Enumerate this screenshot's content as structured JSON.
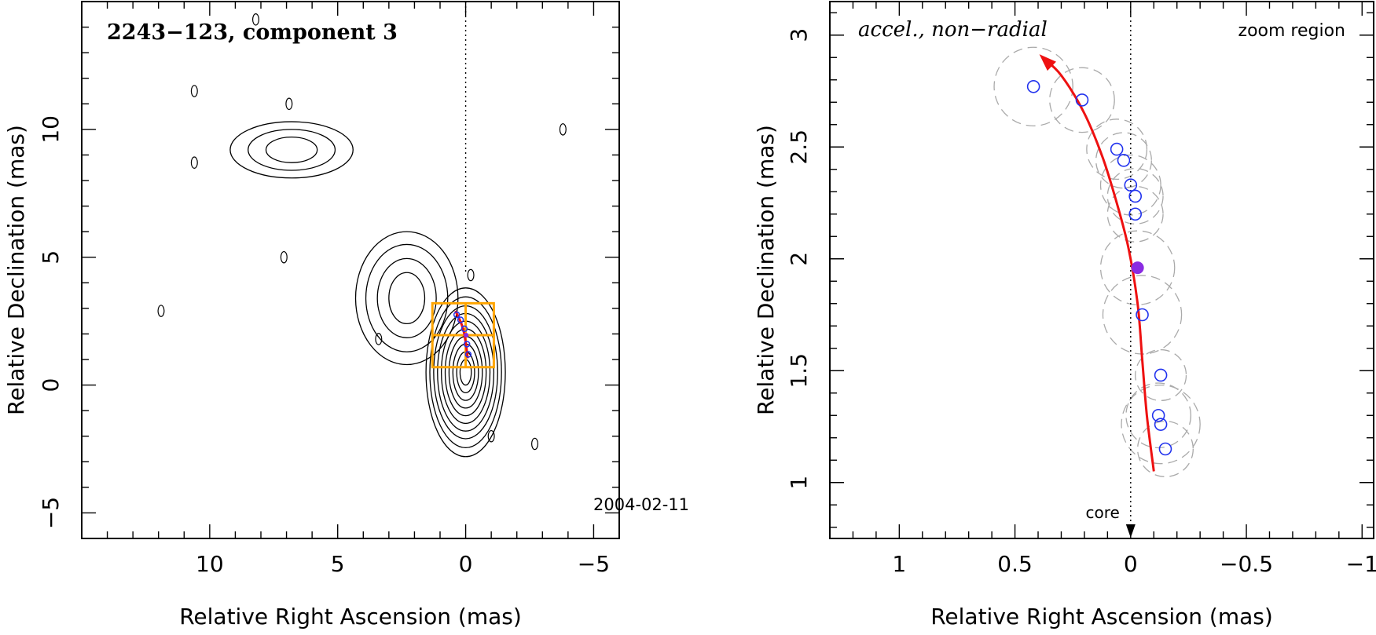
{
  "chart_data": [
    {
      "type": "contour",
      "title": "2243−123, component 3",
      "epoch_label": "2004-02-11",
      "xlabel": "Relative Right Ascension (mas)",
      "ylabel": "Relative Declination (mas)",
      "xlim": [
        15.0,
        -6.0
      ],
      "ylim": [
        -6.0,
        15.0
      ],
      "x_ticks": [
        10,
        5,
        0,
        -5
      ],
      "x_tick_labels": [
        "10",
        "5",
        "0",
        "−5"
      ],
      "y_ticks": [
        -5,
        0,
        5,
        10
      ],
      "y_tick_labels": [
        "−5",
        "0",
        "5",
        "10"
      ],
      "core_line_x": 0,
      "zoom_boxes": [
        {
          "x": [
            1.3,
            -1.1
          ],
          "y": [
            0.7,
            3.2
          ]
        },
        {
          "x": [
            1.3,
            -1.1
          ],
          "y": [
            1.95,
            1.95
          ]
        },
        {
          "x": [
            0.0,
            0.0
          ],
          "y": [
            0.7,
            3.2
          ]
        }
      ],
      "trajectory": [
        [
          -0.08,
          1.05
        ],
        [
          -0.02,
          1.55
        ],
        [
          0.05,
          2.0
        ],
        [
          0.15,
          2.35
        ],
        [
          0.25,
          2.6
        ],
        [
          0.4,
          2.9
        ]
      ],
      "points": [
        [
          -0.1,
          1.2
        ],
        [
          -0.05,
          1.6
        ],
        [
          0.05,
          2.2
        ],
        [
          0.2,
          2.55
        ],
        [
          0.35,
          2.75
        ]
      ],
      "filled_point": [
        -0.02,
        1.95
      ],
      "contours": [
        {
          "center": [
            0.0,
            0.5
          ],
          "levels": [
            [
              1.55,
              3.3
            ],
            [
              1.4,
              2.95
            ],
            [
              1.25,
              2.6
            ],
            [
              1.1,
              2.3
            ],
            [
              0.95,
              2.0
            ],
            [
              0.8,
              1.7
            ],
            [
              0.65,
              1.4
            ],
            [
              0.5,
              1.1
            ],
            [
              0.35,
              0.8
            ],
            [
              0.22,
              0.5
            ]
          ]
        },
        {
          "center": [
            2.3,
            3.4
          ],
          "levels": [
            [
              2.0,
              2.6
            ],
            [
              1.6,
              2.1
            ],
            [
              1.15,
              1.55
            ],
            [
              0.7,
              1.0
            ]
          ]
        },
        {
          "center": [
            6.8,
            9.2
          ],
          "levels": [
            [
              2.4,
              1.1
            ],
            [
              1.7,
              0.8
            ],
            [
              1.0,
              0.5
            ]
          ]
        }
      ],
      "small_features": [
        [
          6.9,
          11.0
        ],
        [
          10.6,
          11.5
        ],
        [
          10.6,
          8.7
        ],
        [
          7.1,
          5.0
        ],
        [
          11.9,
          2.9
        ],
        [
          -3.8,
          10.0
        ],
        [
          -0.2,
          4.3
        ],
        [
          3.4,
          1.8
        ],
        [
          -1.0,
          -2.0
        ],
        [
          -2.7,
          -2.3
        ],
        [
          8.2,
          14.3
        ]
      ]
    },
    {
      "type": "trajectory",
      "title": "accel., non−radial",
      "region_label": "zoom region",
      "core_label": "core",
      "xlabel": "Relative Right Ascension (mas)",
      "ylabel": "Relative Declination (mas)",
      "xlim": [
        1.3,
        -1.05
      ],
      "ylim": [
        0.75,
        3.15
      ],
      "x_ticks": [
        1,
        0.5,
        0,
        -0.5,
        -1
      ],
      "x_tick_labels": [
        "1",
        "0.5",
        "0",
        "−0.5",
        "−1"
      ],
      "y_ticks": [
        1,
        1.5,
        2,
        2.5,
        3
      ],
      "y_tick_labels": [
        "1",
        "1.5",
        "2",
        "2.5",
        "3"
      ],
      "core_line_x": 0,
      "trajectory": [
        [
          -0.1,
          1.05
        ],
        [
          -0.07,
          1.3
        ],
        [
          -0.05,
          1.55
        ],
        [
          -0.03,
          1.8
        ],
        [
          0.01,
          2.05
        ],
        [
          0.06,
          2.25
        ],
        [
          0.12,
          2.45
        ],
        [
          0.2,
          2.65
        ],
        [
          0.3,
          2.82
        ],
        [
          0.38,
          2.9
        ]
      ],
      "open_points": [
        [
          0.42,
          2.77
        ],
        [
          0.21,
          2.71
        ],
        [
          0.06,
          2.49
        ],
        [
          0.03,
          2.44
        ],
        [
          0.0,
          2.33
        ],
        [
          -0.02,
          2.28
        ],
        [
          -0.02,
          2.2
        ],
        [
          -0.05,
          1.75
        ],
        [
          -0.13,
          1.48
        ],
        [
          -0.12,
          1.3
        ],
        [
          -0.13,
          1.26
        ],
        [
          -0.15,
          1.15
        ]
      ],
      "filled_point": [
        -0.03,
        1.96
      ],
      "uncertainty_circles": [
        [
          0.42,
          2.77,
          0.17
        ],
        [
          0.21,
          2.71,
          0.14
        ],
        [
          0.06,
          2.49,
          0.13
        ],
        [
          0.03,
          2.44,
          0.12
        ],
        [
          0.0,
          2.33,
          0.13
        ],
        [
          -0.02,
          2.28,
          0.12
        ],
        [
          -0.02,
          2.2,
          0.12
        ],
        [
          -0.03,
          1.96,
          0.16
        ],
        [
          -0.05,
          1.75,
          0.17
        ],
        [
          -0.13,
          1.48,
          0.11
        ],
        [
          -0.12,
          1.3,
          0.14
        ],
        [
          -0.13,
          1.26,
          0.17
        ],
        [
          -0.15,
          1.15,
          0.12
        ]
      ],
      "colors": {
        "trajectory": "#ee1111",
        "points": "#2233ee",
        "filled": "#8a2be2",
        "circles": "#aaaaaa",
        "zoom_box": "#ffa500"
      }
    }
  ]
}
